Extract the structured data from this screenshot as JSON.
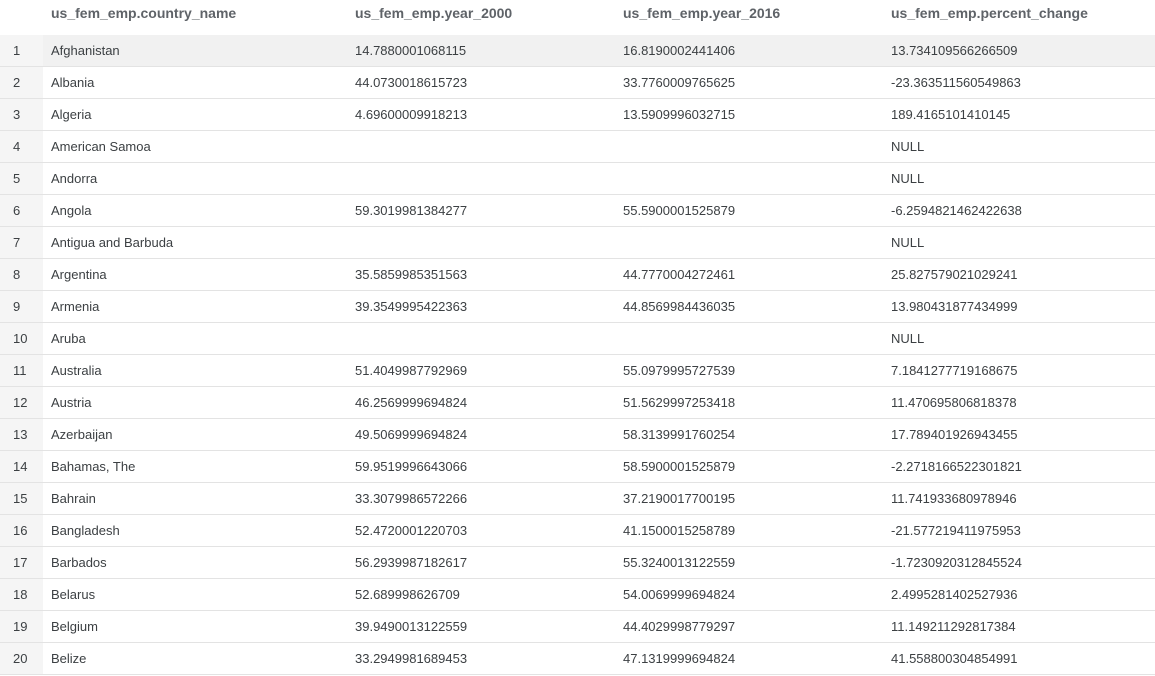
{
  "table": {
    "columns": [
      "us_fem_emp.country_name",
      "us_fem_emp.year_2000",
      "us_fem_emp.year_2016",
      "us_fem_emp.percent_change"
    ],
    "rows": [
      {
        "n": "1",
        "country": "Afghanistan",
        "y2000": "14.7880001068115",
        "y2016": "16.8190002441406",
        "change": "13.734109566266509"
      },
      {
        "n": "2",
        "country": "Albania",
        "y2000": "44.0730018615723",
        "y2016": "33.7760009765625",
        "change": "-23.363511560549863"
      },
      {
        "n": "3",
        "country": "Algeria",
        "y2000": "4.69600009918213",
        "y2016": "13.5909996032715",
        "change": "189.4165101410145"
      },
      {
        "n": "4",
        "country": "American Samoa",
        "y2000": "",
        "y2016": "",
        "change": "NULL"
      },
      {
        "n": "5",
        "country": "Andorra",
        "y2000": "",
        "y2016": "",
        "change": "NULL"
      },
      {
        "n": "6",
        "country": "Angola",
        "y2000": "59.3019981384277",
        "y2016": "55.5900001525879",
        "change": "-6.2594821462422638"
      },
      {
        "n": "7",
        "country": "Antigua and Barbuda",
        "y2000": "",
        "y2016": "",
        "change": "NULL"
      },
      {
        "n": "8",
        "country": "Argentina",
        "y2000": "35.5859985351563",
        "y2016": "44.7770004272461",
        "change": "25.827579021029241"
      },
      {
        "n": "9",
        "country": "Armenia",
        "y2000": "39.3549995422363",
        "y2016": "44.8569984436035",
        "change": "13.980431877434999"
      },
      {
        "n": "10",
        "country": "Aruba",
        "y2000": "",
        "y2016": "",
        "change": "NULL"
      },
      {
        "n": "11",
        "country": "Australia",
        "y2000": "51.4049987792969",
        "y2016": "55.0979995727539",
        "change": "7.1841277719168675"
      },
      {
        "n": "12",
        "country": "Austria",
        "y2000": "46.2569999694824",
        "y2016": "51.5629997253418",
        "change": "11.470695806818378"
      },
      {
        "n": "13",
        "country": "Azerbaijan",
        "y2000": "49.5069999694824",
        "y2016": "58.3139991760254",
        "change": "17.789401926943455"
      },
      {
        "n": "14",
        "country": "Bahamas, The",
        "y2000": "59.9519996643066",
        "y2016": "58.5900001525879",
        "change": "-2.2718166522301821"
      },
      {
        "n": "15",
        "country": "Bahrain",
        "y2000": "33.3079986572266",
        "y2016": "37.2190017700195",
        "change": "11.741933680978946"
      },
      {
        "n": "16",
        "country": "Bangladesh",
        "y2000": "52.4720001220703",
        "y2016": "41.1500015258789",
        "change": "-21.577219411975953"
      },
      {
        "n": "17",
        "country": "Barbados",
        "y2000": "56.2939987182617",
        "y2016": "55.3240013122559",
        "change": "-1.7230920312845524"
      },
      {
        "n": "18",
        "country": "Belarus",
        "y2000": "52.689998626709",
        "y2016": "54.0069999694824",
        "change": "2.4995281402527936"
      },
      {
        "n": "19",
        "country": "Belgium",
        "y2000": "39.9490013122559",
        "y2016": "44.4029998779297",
        "change": "11.149211292817384"
      },
      {
        "n": "20",
        "country": "Belize",
        "y2000": "33.2949981689453",
        "y2016": "47.1319999694824",
        "change": "41.558800304854991"
      }
    ]
  }
}
